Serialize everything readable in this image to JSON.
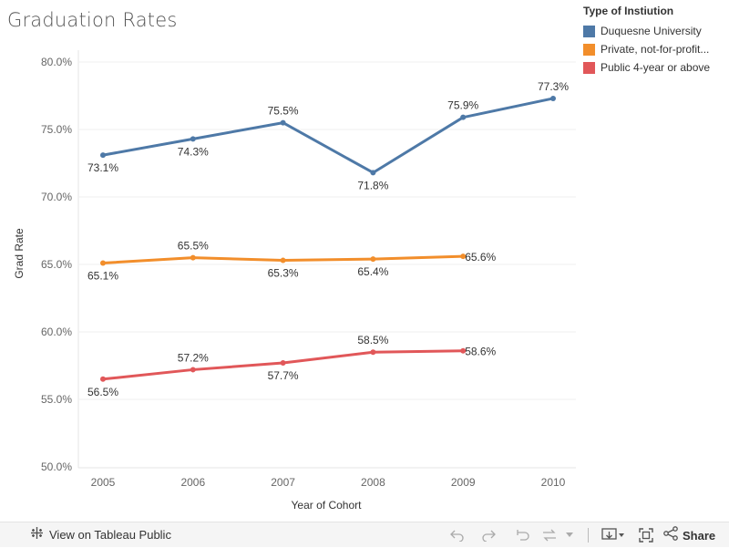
{
  "title": "Graduation Rates",
  "legend": {
    "title": "Type of Instiution",
    "items": [
      {
        "label": "Duquesne University",
        "color": "#4e79a7"
      },
      {
        "label": "Private, not-for-profit...",
        "color": "#f28e2b"
      },
      {
        "label": "Public 4-year or above",
        "color": "#e15759"
      }
    ]
  },
  "chart_data": {
    "type": "line",
    "title": "Graduation Rates",
    "xlabel": "Year of Cohort",
    "ylabel": "Grad Rate",
    "categories": [
      "2005",
      "2006",
      "2007",
      "2008",
      "2009",
      "2010"
    ],
    "ylim": [
      50,
      80
    ],
    "yticks": [
      50,
      55,
      60,
      65,
      70,
      75,
      80
    ],
    "ytick_labels": [
      "50.0%",
      "55.0%",
      "60.0%",
      "65.0%",
      "70.0%",
      "75.0%",
      "80.0%"
    ],
    "grid": true,
    "legend_position": "top-right",
    "series": [
      {
        "name": "Duquesne University",
        "color": "#4e79a7",
        "values": [
          73.1,
          74.3,
          75.5,
          71.8,
          75.9,
          77.3
        ],
        "labels": [
          "73.1%",
          "74.3%",
          "75.5%",
          "71.8%",
          "75.9%",
          "77.3%"
        ],
        "label_pos": [
          "below",
          "below",
          "above",
          "below",
          "above",
          "above"
        ]
      },
      {
        "name": "Private, not-for-profit...",
        "color": "#f28e2b",
        "values": [
          65.1,
          65.5,
          65.3,
          65.4,
          65.6,
          null
        ],
        "labels": [
          "65.1%",
          "65.5%",
          "65.3%",
          "65.4%",
          "65.6%",
          null
        ],
        "label_pos": [
          "below",
          "above",
          "below",
          "below",
          "right",
          null
        ]
      },
      {
        "name": "Public 4-year or above",
        "color": "#e15759",
        "values": [
          56.5,
          57.2,
          57.7,
          58.5,
          58.6,
          null
        ],
        "labels": [
          "56.5%",
          "57.2%",
          "57.7%",
          "58.5%",
          "58.6%",
          null
        ],
        "label_pos": [
          "below",
          "above",
          "below",
          "above",
          "right",
          null
        ]
      }
    ]
  },
  "toolbar": {
    "view_label": "View on Tableau Public",
    "share_label": "Share",
    "icons": [
      "tableau-icon",
      "undo-icon",
      "redo-icon",
      "revert-icon",
      "refresh-icon",
      "download-icon",
      "fullscreen-icon",
      "share-icon"
    ]
  }
}
